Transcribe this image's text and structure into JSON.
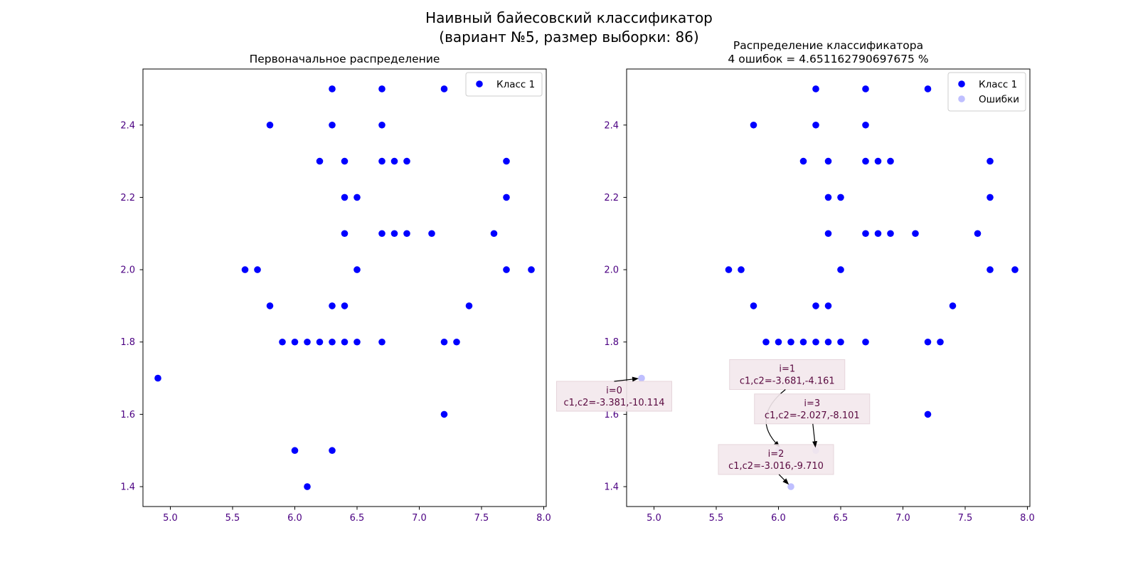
{
  "figure": {
    "suptitle_line1": "Наивный байесовский классификатор",
    "suptitle_line2": "(вариант №5, размер выборки: 86)"
  },
  "chart_data": [
    {
      "type": "scatter",
      "title": "Первоначальное распределение",
      "xlim": [
        4.78,
        8.02
      ],
      "ylim": [
        1.345,
        2.555
      ],
      "xticks": [
        5.0,
        5.5,
        6.0,
        6.5,
        7.0,
        7.5,
        8.0
      ],
      "yticks": [
        1.4,
        1.6,
        1.8,
        2.0,
        2.2,
        2.4
      ],
      "xtick_labels": [
        "5.0",
        "5.5",
        "6.0",
        "6.5",
        "7.0",
        "7.5",
        "8.0"
      ],
      "ytick_labels": [
        "1.4",
        "1.6",
        "1.8",
        "2.0",
        "2.2",
        "2.4"
      ],
      "tick_label_color": "#4b0082",
      "legend": {
        "placement": "top-right",
        "entries": [
          "Класс 1"
        ]
      },
      "series": [
        {
          "name": "Класс 1",
          "color": "#0000ff",
          "points": [
            [
              6.3,
              2.5
            ],
            [
              6.7,
              2.5
            ],
            [
              7.2,
              2.5
            ],
            [
              5.8,
              2.4
            ],
            [
              6.3,
              2.4
            ],
            [
              6.7,
              2.4
            ],
            [
              6.2,
              2.3
            ],
            [
              6.4,
              2.3
            ],
            [
              6.7,
              2.3
            ],
            [
              6.8,
              2.3
            ],
            [
              6.9,
              2.3
            ],
            [
              7.7,
              2.3
            ],
            [
              6.4,
              2.2
            ],
            [
              6.5,
              2.2
            ],
            [
              7.7,
              2.2
            ],
            [
              6.4,
              2.1
            ],
            [
              6.7,
              2.1
            ],
            [
              6.8,
              2.1
            ],
            [
              6.9,
              2.1
            ],
            [
              7.1,
              2.1
            ],
            [
              7.6,
              2.1
            ],
            [
              5.6,
              2.0
            ],
            [
              5.7,
              2.0
            ],
            [
              6.5,
              2.0
            ],
            [
              7.7,
              2.0
            ],
            [
              7.9,
              2.0
            ],
            [
              5.8,
              1.9
            ],
            [
              6.3,
              1.9
            ],
            [
              6.4,
              1.9
            ],
            [
              7.4,
              1.9
            ],
            [
              5.9,
              1.8
            ],
            [
              6.0,
              1.8
            ],
            [
              6.1,
              1.8
            ],
            [
              6.2,
              1.8
            ],
            [
              6.3,
              1.8
            ],
            [
              6.4,
              1.8
            ],
            [
              6.5,
              1.8
            ],
            [
              6.7,
              1.8
            ],
            [
              7.2,
              1.8
            ],
            [
              7.3,
              1.8
            ],
            [
              4.9,
              1.7
            ],
            [
              7.2,
              1.6
            ],
            [
              6.0,
              1.5
            ],
            [
              6.3,
              1.5
            ],
            [
              6.1,
              1.4
            ]
          ]
        }
      ]
    },
    {
      "type": "scatter",
      "title_line1": "Распределение классификатора",
      "title_line2": "4 ошибок = 4.651162790697675 %",
      "xlim": [
        4.78,
        8.02
      ],
      "ylim": [
        1.345,
        2.555
      ],
      "xticks": [
        5.0,
        5.5,
        6.0,
        6.5,
        7.0,
        7.5,
        8.0
      ],
      "yticks": [
        1.4,
        1.6,
        1.8,
        2.0,
        2.2,
        2.4
      ],
      "xtick_labels": [
        "5.0",
        "5.5",
        "6.0",
        "6.5",
        "7.0",
        "7.5",
        "8.0"
      ],
      "ytick_labels": [
        "1.4",
        "1.6",
        "1.8",
        "2.0",
        "2.2",
        "2.4"
      ],
      "tick_label_color": "#4b0082",
      "legend": {
        "placement": "top-right",
        "entries": [
          "Класс 1",
          "Ошибки"
        ]
      },
      "series": [
        {
          "name": "Класс 1",
          "color": "#0000ff",
          "points": [
            [
              6.3,
              2.5
            ],
            [
              6.7,
              2.5
            ],
            [
              7.2,
              2.5
            ],
            [
              5.8,
              2.4
            ],
            [
              6.3,
              2.4
            ],
            [
              6.7,
              2.4
            ],
            [
              6.2,
              2.3
            ],
            [
              6.4,
              2.3
            ],
            [
              6.7,
              2.3
            ],
            [
              6.8,
              2.3
            ],
            [
              6.9,
              2.3
            ],
            [
              7.7,
              2.3
            ],
            [
              6.4,
              2.2
            ],
            [
              6.5,
              2.2
            ],
            [
              7.7,
              2.2
            ],
            [
              6.4,
              2.1
            ],
            [
              6.7,
              2.1
            ],
            [
              6.8,
              2.1
            ],
            [
              6.9,
              2.1
            ],
            [
              7.1,
              2.1
            ],
            [
              7.6,
              2.1
            ],
            [
              5.6,
              2.0
            ],
            [
              5.7,
              2.0
            ],
            [
              6.5,
              2.0
            ],
            [
              7.7,
              2.0
            ],
            [
              7.9,
              2.0
            ],
            [
              5.8,
              1.9
            ],
            [
              6.3,
              1.9
            ],
            [
              6.4,
              1.9
            ],
            [
              7.4,
              1.9
            ],
            [
              5.9,
              1.8
            ],
            [
              6.0,
              1.8
            ],
            [
              6.1,
              1.8
            ],
            [
              6.2,
              1.8
            ],
            [
              6.3,
              1.8
            ],
            [
              6.4,
              1.8
            ],
            [
              6.5,
              1.8
            ],
            [
              6.7,
              1.8
            ],
            [
              7.2,
              1.8
            ],
            [
              7.3,
              1.8
            ],
            [
              7.2,
              1.6
            ]
          ]
        },
        {
          "name": "Ошибки",
          "color": "#0000ff",
          "alpha": 0.25,
          "points": [
            [
              4.9,
              1.7
            ],
            [
              6.0,
              1.5
            ],
            [
              6.1,
              1.4
            ],
            [
              6.3,
              1.5
            ]
          ]
        }
      ],
      "annotations": [
        {
          "line1": "i=0",
          "line2": "c1,c2=-3.381,-10.114",
          "point": [
            4.9,
            1.7
          ],
          "text_at": [
            4.68,
            1.65
          ]
        },
        {
          "line1": "i=1",
          "line2": "c1,c2=-3.681,-4.161",
          "point": [
            6.0,
            1.5
          ],
          "text_at": [
            6.07,
            1.71
          ]
        },
        {
          "line1": "i=2",
          "line2": "c1,c2=-3.016,-9.710",
          "point": [
            6.1,
            1.4
          ],
          "text_at": [
            5.98,
            1.475
          ]
        },
        {
          "line1": "i=3",
          "line2": "c1,c2=-2.027,-8.101",
          "point": [
            6.3,
            1.5
          ],
          "text_at": [
            6.27,
            1.615
          ]
        }
      ]
    }
  ]
}
